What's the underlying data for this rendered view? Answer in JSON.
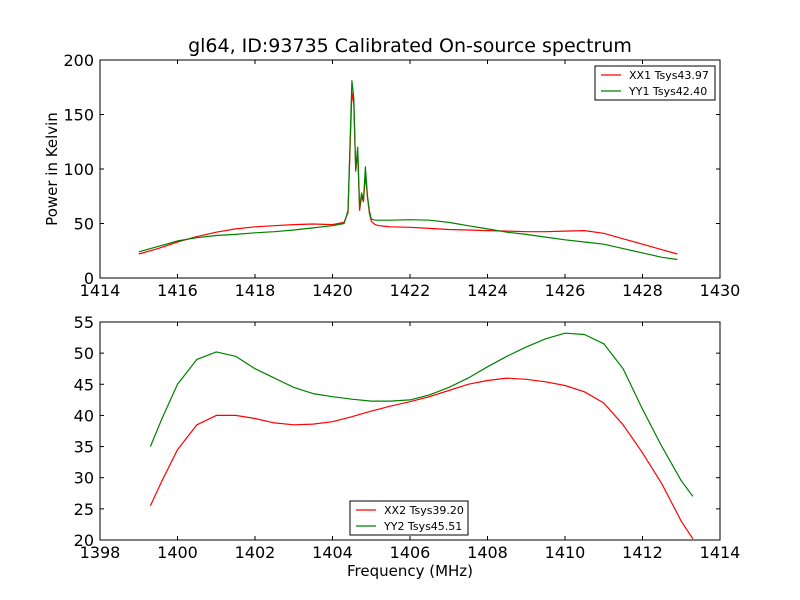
{
  "chart_data": [
    {
      "type": "line",
      "title": "gl64, ID:93735 Calibrated On-source spectrum",
      "xlabel": "",
      "ylabel": "Power in Kelvin",
      "xlim": [
        1414,
        1430
      ],
      "ylim": [
        0,
        200
      ],
      "xticks": [
        1414,
        1416,
        1418,
        1420,
        1422,
        1424,
        1426,
        1428,
        1430
      ],
      "yticks": [
        0,
        50,
        100,
        150,
        200
      ],
      "grid": false,
      "legend_position": "top-right",
      "series": [
        {
          "name": "XX1 Tsys43.97",
          "color": "#ff0000",
          "x": [
            1415.0,
            1415.5,
            1416.0,
            1416.5,
            1417.0,
            1417.5,
            1418.0,
            1418.5,
            1419.0,
            1419.5,
            1420.0,
            1420.3,
            1420.4,
            1420.5,
            1420.55,
            1420.6,
            1420.65,
            1420.7,
            1420.75,
            1420.8,
            1420.85,
            1420.9,
            1420.95,
            1421.0,
            1421.1,
            1421.2,
            1421.5,
            1422.0,
            1422.5,
            1423.0,
            1423.5,
            1424.0,
            1424.5,
            1425.0,
            1425.5,
            1426.0,
            1426.5,
            1427.0,
            1427.5,
            1428.0,
            1428.5,
            1428.9
          ],
          "y": [
            22,
            27,
            33,
            38,
            42,
            45,
            47,
            48,
            49,
            49.5,
            49,
            51,
            60,
            170,
            160,
            98,
            115,
            62,
            75,
            70,
            95,
            75,
            60,
            52,
            49,
            48,
            47,
            46.5,
            45.5,
            44.5,
            44,
            43.5,
            43,
            42.5,
            42.5,
            43,
            43.5,
            41,
            36,
            31,
            26,
            22
          ]
        },
        {
          "name": "YY1 Tsys42.40",
          "color": "#008000",
          "x": [
            1415.0,
            1415.5,
            1416.0,
            1416.5,
            1417.0,
            1417.5,
            1418.0,
            1418.5,
            1419.0,
            1419.5,
            1420.0,
            1420.3,
            1420.4,
            1420.5,
            1420.55,
            1420.6,
            1420.65,
            1420.7,
            1420.75,
            1420.8,
            1420.85,
            1420.9,
            1420.95,
            1421.0,
            1421.1,
            1421.2,
            1421.5,
            1422.0,
            1422.5,
            1423.0,
            1423.5,
            1424.0,
            1424.5,
            1425.0,
            1425.5,
            1426.0,
            1426.5,
            1427.0,
            1427.5,
            1428.0,
            1428.5,
            1428.9
          ],
          "y": [
            24,
            29,
            34,
            37,
            39,
            40,
            41.5,
            42.5,
            44,
            46,
            48,
            50,
            62,
            181,
            165,
            100,
            120,
            65,
            78,
            72,
            102,
            76,
            62,
            54,
            53,
            53,
            53,
            53.5,
            53,
            51,
            48,
            45,
            42,
            40,
            37.5,
            35,
            33,
            31,
            27,
            23,
            19,
            17
          ]
        }
      ]
    },
    {
      "type": "line",
      "title": "",
      "xlabel": "Frequency (MHz)",
      "ylabel": "",
      "xlim": [
        1398,
        1414
      ],
      "ylim": [
        20,
        55
      ],
      "xticks": [
        1398,
        1400,
        1402,
        1404,
        1406,
        1408,
        1410,
        1412,
        1414
      ],
      "yticks": [
        20,
        25,
        30,
        35,
        40,
        45,
        50,
        55
      ],
      "grid": false,
      "legend_position": "bottom-center",
      "series": [
        {
          "name": "XX2 Tsys39.20",
          "color": "#ff0000",
          "x": [
            1399.3,
            1399.6,
            1400.0,
            1400.5,
            1401.0,
            1401.5,
            1402.0,
            1402.5,
            1403.0,
            1403.5,
            1404.0,
            1404.5,
            1405.0,
            1405.5,
            1406.0,
            1406.5,
            1407.0,
            1407.5,
            1408.0,
            1408.5,
            1409.0,
            1409.5,
            1410.0,
            1410.5,
            1411.0,
            1411.5,
            1412.0,
            1412.5,
            1413.0,
            1413.3
          ],
          "y": [
            25.5,
            29.5,
            34.5,
            38.5,
            40,
            40,
            39.5,
            38.8,
            38.5,
            38.6,
            39,
            39.8,
            40.7,
            41.5,
            42.2,
            43,
            44,
            45,
            45.6,
            46,
            45.8,
            45.4,
            44.8,
            43.8,
            42,
            38.5,
            34,
            29,
            23,
            20.2
          ]
        },
        {
          "name": "YY2 Tsys45.51",
          "color": "#008000",
          "x": [
            1399.3,
            1399.6,
            1400.0,
            1400.5,
            1401.0,
            1401.5,
            1402.0,
            1402.5,
            1403.0,
            1403.5,
            1404.0,
            1404.5,
            1405.0,
            1405.5,
            1406.0,
            1406.5,
            1407.0,
            1407.5,
            1408.0,
            1408.5,
            1409.0,
            1409.5,
            1410.0,
            1410.5,
            1411.0,
            1411.5,
            1412.0,
            1412.5,
            1413.0,
            1413.3
          ],
          "y": [
            35,
            39.5,
            45,
            49,
            50.2,
            49.5,
            47.5,
            46,
            44.5,
            43.5,
            43,
            42.6,
            42.3,
            42.3,
            42.5,
            43.3,
            44.5,
            46,
            47.8,
            49.5,
            51,
            52.3,
            53.2,
            53,
            51.5,
            47.5,
            41,
            35,
            29.5,
            27
          ]
        }
      ]
    }
  ]
}
